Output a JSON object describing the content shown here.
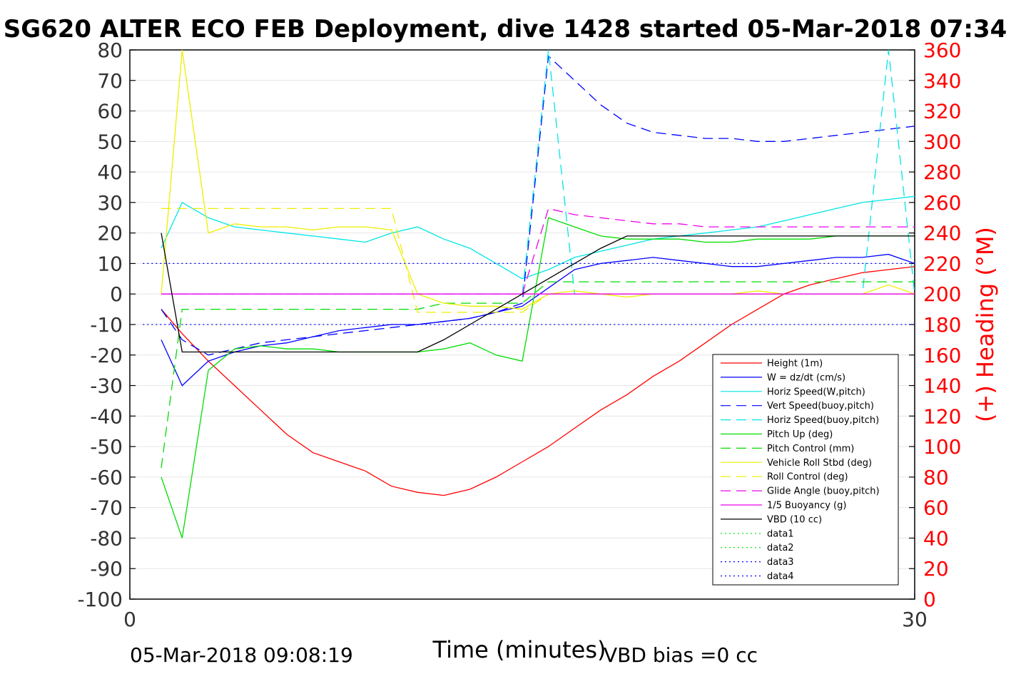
{
  "chart_data": {
    "type": "line",
    "title": "SG620 ALTER ECO FEB Deployment, dive 1428 started 05-Mar-2018 07:34",
    "xlabel": "Time (minutes)",
    "ylabel_right": "(+) Heading (°M)",
    "footer_left": "05-Mar-2018 09:08:19",
    "footer_right": "VBD bias =0 cc",
    "xlim": [
      0,
      30
    ],
    "ylim_left": [
      -100,
      80
    ],
    "ylim_right": [
      0,
      360
    ],
    "x_ticks": [
      0,
      30
    ],
    "y_ticks_left": [
      80,
      70,
      60,
      50,
      40,
      30,
      20,
      10,
      0,
      -10,
      -20,
      -30,
      -40,
      -50,
      -60,
      -70,
      -80,
      -90,
      -100
    ],
    "y_ticks_right": [
      360,
      340,
      320,
      300,
      280,
      260,
      240,
      220,
      200,
      180,
      160,
      140,
      120,
      100,
      80,
      60,
      40,
      20,
      0
    ],
    "grid": true,
    "legend_position": "lower-right",
    "colors": {
      "red": "#ff0000",
      "blue": "#0000ff",
      "cyan": "#00e5e5",
      "green": "#00dd00",
      "yellow": "#eeee00",
      "magenta": "#ee00ee",
      "black": "#000000",
      "grid": "#e6e6e6"
    },
    "series": [
      {
        "name": "Height (1m)",
        "color": "#ff0000",
        "dash": "solid",
        "x": [
          1.2,
          2.0,
          3.0,
          4.0,
          5.0,
          6.0,
          7.0,
          8.0,
          9.0,
          10.0,
          11.0,
          12.0,
          13.0,
          14.0,
          15.0,
          16.0,
          17.0,
          18.0,
          19.0,
          20.0,
          21.0,
          22.0,
          23.0,
          24.0,
          25.0,
          26.0,
          27.0,
          28.0,
          29.0,
          30.0
        ],
        "y": [
          -5,
          -13,
          -22,
          -30,
          -38,
          -46,
          -52,
          -55,
          -58,
          -63,
          -65,
          -66,
          -64,
          -60,
          -55,
          -50,
          -44,
          -38,
          -33,
          -27,
          -22,
          -16,
          -10,
          -5,
          0,
          3,
          5,
          7,
          8,
          9
        ]
      },
      {
        "name": "W = dz/dt (cm/s)",
        "color": "#0000ff",
        "dash": "solid",
        "x": [
          1.2,
          2.0,
          3.0,
          4.0,
          5.0,
          6.0,
          7.0,
          8.0,
          9.0,
          10.0,
          11.0,
          12.0,
          13.0,
          14.0,
          15.0,
          16.0,
          17.0,
          18.0,
          19.0,
          20.0,
          21.0,
          22.0,
          23.0,
          24.0,
          25.0,
          26.0,
          27.0,
          28.0,
          29.0,
          30.0
        ],
        "y": [
          -15,
          -30,
          -22,
          -19,
          -17,
          -16,
          -14,
          -12,
          -11,
          -10,
          -10,
          -9,
          -8,
          -6,
          -4,
          2,
          8,
          10,
          11,
          12,
          11,
          10,
          9,
          9,
          10,
          11,
          12,
          12,
          13,
          10
        ]
      },
      {
        "name": "Horiz Speed(W,pitch)",
        "color": "#00e5e5",
        "dash": "solid",
        "x": [
          1.2,
          2.0,
          3.0,
          4.0,
          5.0,
          6.0,
          7.0,
          8.0,
          9.0,
          10.0,
          11.0,
          12.0,
          13.0,
          14.0,
          15.0,
          16.0,
          17.0,
          18.0,
          19.0,
          20.0,
          21.0,
          22.0,
          23.0,
          24.0,
          25.0,
          26.0,
          27.0,
          28.0,
          29.0,
          30.0
        ],
        "y": [
          15,
          30,
          25,
          22,
          21,
          20,
          19,
          18,
          17,
          20,
          22,
          18,
          15,
          10,
          5,
          8,
          12,
          14,
          16,
          18,
          19,
          20,
          21,
          22,
          24,
          26,
          28,
          30,
          31,
          32
        ]
      },
      {
        "name": "Vert Speed(buoy,pitch)",
        "color": "#0000ff",
        "dash": "dashed",
        "x": [
          1.2,
          2.0,
          3.0,
          4.0,
          5.0,
          6.0,
          7.0,
          8.0,
          9.0,
          10.0,
          11.0,
          12.0,
          13.0,
          14.0,
          15.0,
          16.0,
          17.0,
          18.0,
          19.0,
          20.0,
          21.0,
          22.0,
          23.0,
          24.0,
          25.0,
          26.0,
          27.0,
          28.0,
          29.0,
          30.0
        ],
        "y": [
          -5,
          -15,
          -20,
          -18,
          -16,
          -15,
          -14,
          -13,
          -12,
          -11,
          -10,
          -9,
          -8,
          -6,
          -3,
          78,
          70,
          62,
          56,
          53,
          52,
          51,
          51,
          50,
          50,
          51,
          52,
          53,
          54,
          55
        ]
      },
      {
        "name": "Horiz Speed(buoy,pitch)",
        "color": "#00e5e5",
        "dash": "dashed",
        "x": [
          1.2,
          2.0,
          3.0,
          4.0,
          5.0,
          6.0,
          7.0,
          8.0,
          9.0,
          10.0,
          11.0,
          12.0,
          13.0,
          14.0,
          15.0,
          16.0,
          17.0,
          18.0,
          19.0,
          20.0,
          21.0,
          22.0,
          23.0,
          24.0,
          25.0,
          26.0,
          27.0,
          28.0,
          29.0,
          30.0
        ],
        "y": [
          0,
          0,
          0,
          0,
          0,
          0,
          0,
          0,
          0,
          0,
          0,
          0,
          0,
          0,
          0,
          80,
          0,
          0,
          0,
          0,
          0,
          0,
          0,
          0,
          0,
          0,
          0,
          0,
          80,
          0
        ]
      },
      {
        "name": "Pitch Up (deg)",
        "color": "#00dd00",
        "dash": "solid",
        "x": [
          1.2,
          2.0,
          3.0,
          4.0,
          5.0,
          6.0,
          7.0,
          8.0,
          9.0,
          10.0,
          11.0,
          12.0,
          13.0,
          14.0,
          15.0,
          16.0,
          17.0,
          18.0,
          19.0,
          20.0,
          21.0,
          22.0,
          23.0,
          24.0,
          25.0,
          26.0,
          27.0,
          28.0,
          29.0,
          30.0
        ],
        "y": [
          -60,
          -80,
          -25,
          -18,
          -17,
          -18,
          -18,
          -19,
          -19,
          -19,
          -19,
          -18,
          -16,
          -20,
          -22,
          25,
          22,
          19,
          18,
          18,
          18,
          17,
          17,
          18,
          18,
          18,
          19,
          19,
          19,
          19
        ]
      },
      {
        "name": "Pitch Control (mm)",
        "color": "#00dd00",
        "dash": "dashed",
        "x": [
          1.2,
          2.0,
          3.0,
          4.0,
          5.0,
          6.0,
          7.0,
          8.0,
          9.0,
          10.0,
          11.0,
          12.0,
          13.0,
          14.0,
          15.0,
          16.0,
          17.0,
          18.0,
          19.0,
          20.0,
          21.0,
          22.0,
          23.0,
          24.0,
          25.0,
          26.0,
          27.0,
          28.0,
          29.0,
          30.0
        ],
        "y": [
          -57,
          -5,
          -5,
          -5,
          -5,
          -5,
          -5,
          -5,
          -5,
          -5,
          -5,
          -3,
          -3,
          -3,
          -3,
          4,
          4,
          4,
          4,
          4,
          4,
          4,
          4,
          4,
          4,
          4,
          4,
          4,
          4,
          4
        ]
      },
      {
        "name": "Vehicle Roll Stbd (deg)",
        "color": "#eeee00",
        "dash": "solid",
        "x": [
          1.2,
          2.0,
          3.0,
          4.0,
          5.0,
          6.0,
          7.0,
          8.0,
          9.0,
          10.0,
          11.0,
          12.0,
          13.0,
          14.0,
          15.0,
          16.0,
          17.0,
          18.0,
          19.0,
          20.0,
          21.0,
          22.0,
          23.0,
          24.0,
          25.0,
          26.0,
          27.0,
          28.0,
          29.0,
          30.0
        ],
        "y": [
          0,
          80,
          20,
          23,
          22,
          22,
          21,
          22,
          22,
          21,
          0,
          -3,
          -4,
          -4,
          -5,
          0,
          1,
          0,
          -1,
          0,
          0,
          0,
          0,
          1,
          0,
          0,
          0,
          0,
          3,
          0
        ]
      },
      {
        "name": "Roll Control (deg)",
        "color": "#eeee00",
        "dash": "dashed",
        "x": [
          1.2,
          2.0,
          3.0,
          4.0,
          5.0,
          6.0,
          7.0,
          8.0,
          9.0,
          10.0,
          11.0,
          12.0,
          13.0,
          14.0,
          15.0,
          16.0,
          17.0,
          18.0,
          19.0,
          20.0,
          21.0,
          22.0,
          23.0,
          24.0,
          25.0,
          26.0,
          27.0,
          28.0,
          29.0,
          30.0
        ],
        "y": [
          28,
          28,
          28,
          28,
          28,
          28,
          28,
          28,
          28,
          28,
          -6,
          -6,
          -6,
          -6,
          -6,
          0,
          0,
          0,
          0,
          0,
          0,
          0,
          0,
          0,
          0,
          0,
          0,
          0,
          0,
          0
        ]
      },
      {
        "name": "Glide Angle (buoy,pitch)",
        "color": "#ee00ee",
        "dash": "dashed",
        "x": [
          1.2,
          2.0,
          3.0,
          4.0,
          5.0,
          6.0,
          7.0,
          8.0,
          9.0,
          10.0,
          11.0,
          12.0,
          13.0,
          14.0,
          15.0,
          16.0,
          17.0,
          18.0,
          19.0,
          20.0,
          21.0,
          22.0,
          23.0,
          24.0,
          25.0,
          26.0,
          27.0,
          28.0,
          29.0,
          30.0
        ],
        "y": [
          0,
          0,
          0,
          0,
          0,
          0,
          0,
          0,
          0,
          0,
          0,
          0,
          0,
          0,
          0,
          28,
          26,
          25,
          24,
          23,
          23,
          22,
          22,
          22,
          22,
          22,
          22,
          22,
          22,
          22
        ]
      },
      {
        "name": "1/5 Buoyancy (g)",
        "color": "#ee00ee",
        "dash": "solid",
        "x": [
          1.2,
          2.0,
          3.0,
          4.0,
          5.0,
          6.0,
          7.0,
          8.0,
          9.0,
          10.0,
          11.0,
          12.0,
          13.0,
          14.0,
          15.0,
          16.0,
          17.0,
          18.0,
          19.0,
          20.0,
          21.0,
          22.0,
          23.0,
          24.0,
          25.0,
          26.0,
          27.0,
          28.0,
          29.0,
          30.0
        ],
        "y": [
          0,
          0,
          0,
          0,
          0,
          0,
          0,
          0,
          0,
          0,
          0,
          0,
          0,
          0,
          0,
          0,
          0,
          0,
          0,
          0,
          0,
          0,
          0,
          0,
          0,
          0,
          0,
          0,
          0,
          0
        ]
      },
      {
        "name": "VBD (10 cc)",
        "color": "#000000",
        "dash": "solid",
        "x": [
          1.2,
          2.0,
          3.0,
          4.0,
          5.0,
          6.0,
          7.0,
          8.0,
          9.0,
          10.0,
          11.0,
          12.0,
          13.0,
          14.0,
          15.0,
          16.0,
          17.0,
          18.0,
          19.0,
          20.0,
          21.0,
          22.0,
          23.0,
          24.0,
          25.0,
          26.0,
          27.0,
          28.0,
          29.0,
          30.0
        ],
        "y": [
          20,
          -19,
          -19,
          -19,
          -19,
          -19,
          -19,
          -19,
          -19,
          -19,
          -19,
          -15,
          -10,
          -5,
          0,
          5,
          10,
          15,
          19,
          19,
          19,
          19,
          19,
          19,
          19,
          19,
          19,
          19,
          19,
          19
        ]
      },
      {
        "name": "data1",
        "color": "#00dd00",
        "dash": "dotted",
        "x": [],
        "y": []
      },
      {
        "name": "data2",
        "color": "#00dd00",
        "dash": "dotted",
        "x": [],
        "y": []
      },
      {
        "name": "data3",
        "color": "#0000ff",
        "dash": "dotted",
        "x": [
          0.5,
          30
        ],
        "y": [
          10,
          10
        ]
      },
      {
        "name": "data4",
        "color": "#0000ff",
        "dash": "dotted",
        "x": [
          0.5,
          30
        ],
        "y": [
          -10,
          -10
        ]
      }
    ]
  }
}
